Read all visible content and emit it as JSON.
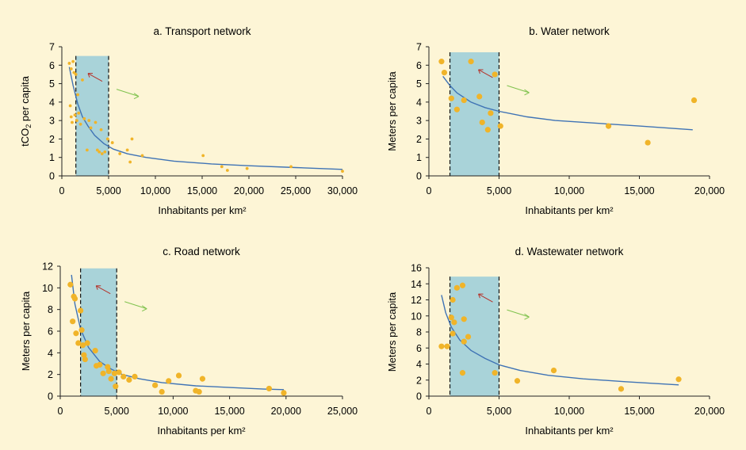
{
  "colors": {
    "background": "#fdf5d6",
    "highlight": "#a9d3d9",
    "fit_line": "#3f73b5",
    "points": "#f0b429",
    "arrow_up": "#b5322a",
    "arrow_down": "#7fc24d"
  },
  "chart_data": [
    {
      "type": "scatter",
      "title": "a. Transport network",
      "xlabel": "Inhabitants per km²",
      "ylabel_main": "tCO",
      "ylabel_sub": "2",
      "ylabel_tail": " per capita",
      "xlim": [
        0,
        30000
      ],
      "ylim": [
        0,
        7
      ],
      "xticks": [
        0,
        5000,
        10000,
        15000,
        20000,
        25000,
        30000
      ],
      "xtick_labels": [
        "0",
        "5,000",
        "10,000",
        "15,000",
        "20,000",
        "25,000",
        "30,000"
      ],
      "yticks": [
        0,
        1,
        2,
        3,
        4,
        5,
        6,
        7
      ],
      "ytick_labels": [
        "0",
        "1",
        "2",
        "3",
        "4",
        "5",
        "6",
        "7"
      ],
      "highlight_band": [
        1500,
        5000
      ],
      "point_size": "small",
      "points": [
        [
          800,
          6.1
        ],
        [
          1000,
          5.8
        ],
        [
          1200,
          6.2
        ],
        [
          1300,
          5.6
        ],
        [
          1500,
          5.5
        ],
        [
          900,
          3.8
        ],
        [
          1000,
          3.2
        ],
        [
          1100,
          2.9
        ],
        [
          1400,
          3.3
        ],
        [
          1600,
          3.0
        ],
        [
          1700,
          4.4
        ],
        [
          1800,
          3.4
        ],
        [
          2000,
          2.8
        ],
        [
          2200,
          5.2
        ],
        [
          2400,
          3.1
        ],
        [
          2700,
          1.4
        ],
        [
          2900,
          3.0
        ],
        [
          3100,
          2.6
        ],
        [
          3600,
          2.9
        ],
        [
          3800,
          1.4
        ],
        [
          4000,
          1.3
        ],
        [
          4200,
          2.5
        ],
        [
          4300,
          1.2
        ],
        [
          4600,
          1.3
        ],
        [
          4900,
          2.0
        ],
        [
          5400,
          1.8
        ],
        [
          6200,
          1.2
        ],
        [
          7000,
          1.4
        ],
        [
          7300,
          0.75
        ],
        [
          7500,
          2.0
        ],
        [
          8600,
          1.1
        ],
        [
          15100,
          1.1
        ],
        [
          17100,
          0.5
        ],
        [
          17700,
          0.3
        ],
        [
          19800,
          0.4
        ],
        [
          24500,
          0.5
        ],
        [
          30000,
          0.25
        ]
      ],
      "fit_points": [
        [
          800,
          5.9
        ],
        [
          1200,
          4.9
        ],
        [
          1700,
          3.9
        ],
        [
          2200,
          3.2
        ],
        [
          2800,
          2.7
        ],
        [
          3500,
          2.2
        ],
        [
          4500,
          1.75
        ],
        [
          5500,
          1.45
        ],
        [
          7000,
          1.2
        ],
        [
          9000,
          1.0
        ],
        [
          12000,
          0.8
        ],
        [
          16000,
          0.65
        ],
        [
          20000,
          0.55
        ],
        [
          25000,
          0.45
        ],
        [
          30000,
          0.35
        ]
      ]
    },
    {
      "type": "scatter",
      "title": "b. Water network",
      "xlabel": "Inhabitants per km²",
      "ylabel": "Meters per capita",
      "xlim": [
        0,
        20000
      ],
      "ylim": [
        0,
        7
      ],
      "xticks": [
        0,
        5000,
        10000,
        15000,
        20000
      ],
      "xtick_labels": [
        "0",
        "5,000",
        "10,000",
        "15,000",
        "20,000"
      ],
      "yticks": [
        0,
        1,
        2,
        3,
        4,
        5,
        6,
        7
      ],
      "ytick_labels": [
        "0",
        "1",
        "2",
        "3",
        "4",
        "5",
        "6",
        "7"
      ],
      "highlight_band": [
        1500,
        5000
      ],
      "point_size": "large",
      "points": [
        [
          900,
          6.2
        ],
        [
          1100,
          5.6
        ],
        [
          1600,
          4.2
        ],
        [
          2000,
          3.6
        ],
        [
          2500,
          4.1
        ],
        [
          3000,
          6.2
        ],
        [
          3600,
          4.3
        ],
        [
          3800,
          2.9
        ],
        [
          4200,
          2.5
        ],
        [
          4400,
          3.4
        ],
        [
          4700,
          5.5
        ],
        [
          5100,
          2.7
        ],
        [
          12800,
          2.7
        ],
        [
          15600,
          1.8
        ],
        [
          18900,
          4.1
        ]
      ],
      "fit_points": [
        [
          1000,
          5.4
        ],
        [
          1500,
          4.9
        ],
        [
          2000,
          4.5
        ],
        [
          3000,
          4.0
        ],
        [
          4000,
          3.7
        ],
        [
          5000,
          3.5
        ],
        [
          7000,
          3.2
        ],
        [
          9000,
          3.0
        ],
        [
          12000,
          2.85
        ],
        [
          15000,
          2.7
        ],
        [
          18800,
          2.5
        ]
      ]
    },
    {
      "type": "scatter",
      "title": "c. Road network",
      "xlabel": "Inhabitants per km²",
      "ylabel": "Meters per capita",
      "xlim": [
        0,
        25000
      ],
      "ylim": [
        0,
        12
      ],
      "xticks": [
        0,
        5000,
        10000,
        15000,
        20000,
        25000
      ],
      "xtick_labels": [
        "0",
        "5,000",
        "10,000",
        "15,000",
        "20,000",
        "25,000"
      ],
      "yticks": [
        0,
        2,
        4,
        6,
        8,
        10,
        12
      ],
      "ytick_labels": [
        "0",
        "2",
        "4",
        "6",
        "8",
        "10",
        "12"
      ],
      "highlight_band": [
        1800,
        5000
      ],
      "point_size": "large",
      "points": [
        [
          900,
          10.3
        ],
        [
          1200,
          9.2
        ],
        [
          1300,
          9.0
        ],
        [
          1100,
          6.9
        ],
        [
          1400,
          5.8
        ],
        [
          1600,
          4.9
        ],
        [
          1800,
          7.9
        ],
        [
          1900,
          6.1
        ],
        [
          2000,
          4.7
        ],
        [
          2100,
          3.8
        ],
        [
          2200,
          3.4
        ],
        [
          2400,
          4.9
        ],
        [
          3100,
          4.2
        ],
        [
          3200,
          2.8
        ],
        [
          3500,
          2.9
        ],
        [
          3800,
          2.1
        ],
        [
          4200,
          2.7
        ],
        [
          4300,
          2.3
        ],
        [
          4500,
          1.6
        ],
        [
          4800,
          2.1
        ],
        [
          4900,
          0.9
        ],
        [
          5200,
          2.2
        ],
        [
          5600,
          1.8
        ],
        [
          6100,
          1.5
        ],
        [
          6600,
          1.8
        ],
        [
          8400,
          1.0
        ],
        [
          9000,
          0.4
        ],
        [
          9600,
          1.4
        ],
        [
          10500,
          1.9
        ],
        [
          12000,
          0.5
        ],
        [
          12300,
          0.4
        ],
        [
          12600,
          1.6
        ],
        [
          18500,
          0.7
        ],
        [
          19800,
          0.3
        ]
      ],
      "fit_points": [
        [
          1000,
          11.2
        ],
        [
          1300,
          8.5
        ],
        [
          1800,
          6.2
        ],
        [
          2500,
          4.5
        ],
        [
          3500,
          3.2
        ],
        [
          4500,
          2.5
        ],
        [
          5500,
          2.0
        ],
        [
          7000,
          1.6
        ],
        [
          9000,
          1.25
        ],
        [
          12000,
          0.95
        ],
        [
          15000,
          0.8
        ],
        [
          18000,
          0.65
        ],
        [
          19800,
          0.6
        ]
      ]
    },
    {
      "type": "scatter",
      "title": "d. Wastewater network",
      "xlabel": "Inhabitants per km²",
      "ylabel": "Meters per capita",
      "xlim": [
        0,
        20000
      ],
      "ylim": [
        0,
        16
      ],
      "xticks": [
        0,
        5000,
        10000,
        15000,
        20000
      ],
      "xtick_labels": [
        "0",
        "5,000",
        "10,000",
        "15,000",
        "20,000"
      ],
      "yticks": [
        0,
        2,
        4,
        6,
        8,
        10,
        12,
        14,
        16
      ],
      "ytick_labels": [
        "0",
        "2",
        "4",
        "6",
        "8",
        "10",
        "12",
        "14",
        "16"
      ],
      "highlight_band": [
        1500,
        5000
      ],
      "point_size": "large",
      "points": [
        [
          900,
          6.2
        ],
        [
          1300,
          6.2
        ],
        [
          1600,
          9.8
        ],
        [
          1700,
          7.8
        ],
        [
          1700,
          12.0
        ],
        [
          1800,
          9.2
        ],
        [
          2000,
          13.5
        ],
        [
          2400,
          13.8
        ],
        [
          2400,
          2.9
        ],
        [
          2500,
          9.6
        ],
        [
          2500,
          6.8
        ],
        [
          2800,
          7.4
        ],
        [
          4700,
          2.9
        ],
        [
          6300,
          1.9
        ],
        [
          8900,
          3.2
        ],
        [
          13700,
          0.9
        ],
        [
          17800,
          2.1
        ]
      ],
      "fit_points": [
        [
          900,
          12.6
        ],
        [
          1200,
          10.4
        ],
        [
          1600,
          8.6
        ],
        [
          2200,
          7.0
        ],
        [
          3000,
          5.7
        ],
        [
          4000,
          4.7
        ],
        [
          5000,
          3.9
        ],
        [
          6500,
          3.2
        ],
        [
          8500,
          2.6
        ],
        [
          11000,
          2.15
        ],
        [
          14000,
          1.8
        ],
        [
          17800,
          1.4
        ]
      ]
    }
  ]
}
